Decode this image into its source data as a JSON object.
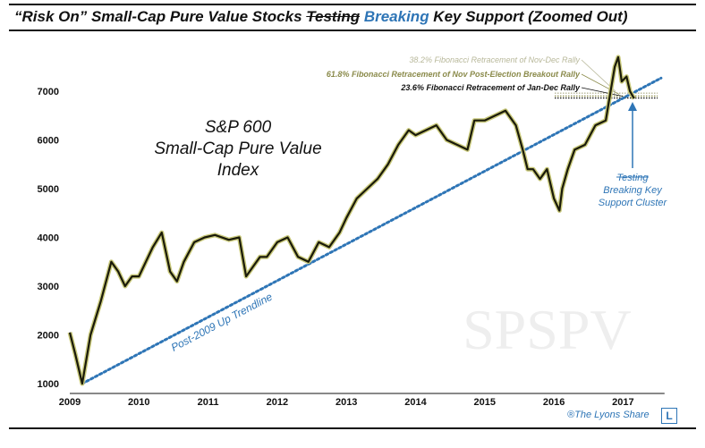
{
  "title": {
    "part1": "“Risk On” Small-Cap Pure Value Stocks ",
    "struck": "Testing",
    "blue": "Breaking",
    "part2": " Key Support (Zoomed Out)"
  },
  "credit": "®The Lyons Share",
  "logo_letter": "L",
  "colors": {
    "price": "#1a1a0a",
    "price_glow": "#c8c87a",
    "trendline": "#2e75b6",
    "annotation_blue": "#2e75b6",
    "fib_38": "#b8b89a",
    "fib_61": "#8a8a4a",
    "fib_23": "#111111"
  },
  "chart_data": {
    "type": "line",
    "title": "S&P 600 Small-Cap Pure Value Index",
    "index_label_lines": [
      "S&P 600",
      "Small-Cap Pure Value",
      "Index"
    ],
    "watermark": "SPSPV",
    "xlabel": "",
    "ylabel": "",
    "xlim": [
      2009.0,
      2017.55
    ],
    "ylim": [
      1000,
      7700
    ],
    "x_ticks": [
      2009,
      2010,
      2011,
      2012,
      2013,
      2014,
      2015,
      2016,
      2017
    ],
    "x_tick_labels": [
      "2009",
      "2010",
      "2011",
      "2012",
      "2013",
      "2014",
      "2015",
      "2016",
      "2017"
    ],
    "y_ticks": [
      1000,
      2000,
      3000,
      4000,
      5000,
      6000,
      7000
    ],
    "y_tick_labels": [
      "1000",
      "2000",
      "3000",
      "4000",
      "5000",
      "6000",
      "7000"
    ],
    "grid": false,
    "series": [
      {
        "x": [
          2009.0,
          2009.08,
          2009.18,
          2009.3,
          2009.45,
          2009.6,
          2009.7,
          2009.8,
          2009.9,
          2010.0,
          2010.1,
          2010.2,
          2010.33,
          2010.45,
          2010.55,
          2010.65,
          2010.8,
          2010.95,
          2011.1,
          2011.3,
          2011.45,
          2011.55,
          2011.65,
          2011.75,
          2011.85,
          2012.0,
          2012.15,
          2012.3,
          2012.45,
          2012.6,
          2012.75,
          2012.9,
          2013.0,
          2013.15,
          2013.3,
          2013.45,
          2013.6,
          2013.75,
          2013.9,
          2014.0,
          2014.15,
          2014.3,
          2014.45,
          2014.6,
          2014.75,
          2014.85,
          2015.0,
          2015.15,
          2015.3,
          2015.45,
          2015.55,
          2015.62,
          2015.7,
          2015.8,
          2015.9,
          2016.0,
          2016.08,
          2016.12,
          2016.2,
          2016.3,
          2016.45,
          2016.6,
          2016.75,
          2016.82,
          2016.88,
          2016.93,
          2016.98,
          2017.05,
          2017.1,
          2017.16
        ],
        "values": [
          2050,
          1600,
          1000,
          2000,
          2700,
          3500,
          3300,
          3000,
          3200,
          3200,
          3500,
          3800,
          4100,
          3300,
          3100,
          3500,
          3900,
          4000,
          4050,
          3950,
          4000,
          3200,
          3400,
          3600,
          3600,
          3900,
          4000,
          3600,
          3500,
          3900,
          3800,
          4100,
          4400,
          4800,
          5000,
          5200,
          5500,
          5900,
          6200,
          6100,
          6200,
          6300,
          6000,
          5900,
          5800,
          6400,
          6400,
          6500,
          6600,
          6300,
          5800,
          5400,
          5400,
          5200,
          5400,
          4800,
          4550,
          5000,
          5400,
          5800,
          5900,
          6300,
          6400,
          7000,
          7500,
          7700,
          7200,
          7300,
          7000,
          6850
        ]
      }
    ],
    "trendline": {
      "name": "Post-2009 Up Trendline",
      "x": [
        2009.18,
        2017.55
      ],
      "values": [
        1000,
        7270
      ]
    },
    "fib_levels": [
      {
        "label": "38.2% Fibonacci Retracement of Nov-Dec Rally",
        "value": 6960
      },
      {
        "label": "61.8% Fibonacci Retracement of Nov Post-Election Breakout Rally",
        "value": 6900
      },
      {
        "label": "23.6% Fibonacci Retracement of Jan-Dec Rally",
        "value": 6860
      }
    ],
    "callout": {
      "struck": "Testing",
      "lines": [
        "Breaking Key",
        "Support Cluster"
      ]
    },
    "legend": "none"
  }
}
